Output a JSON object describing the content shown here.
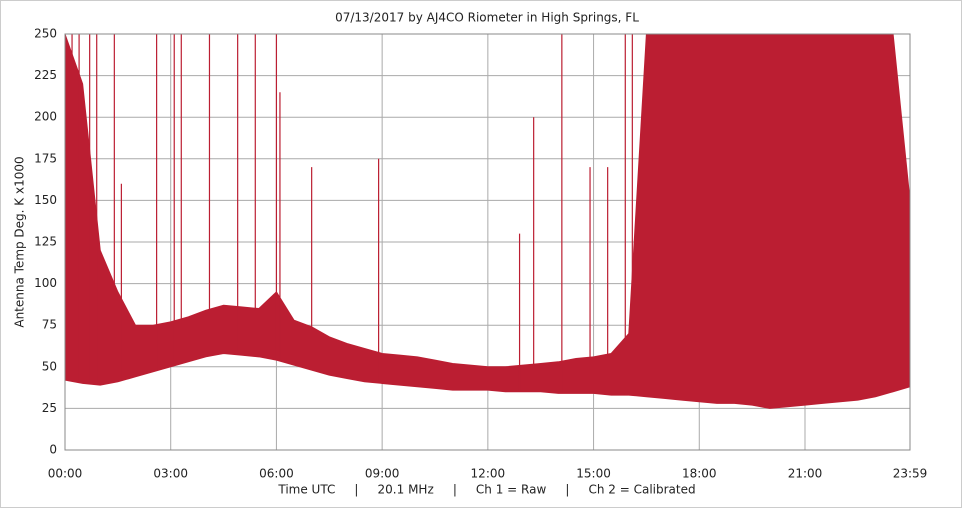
{
  "chart_data": {
    "type": "band",
    "title": "07/13/2017  by  AJ4CO Riometer  in  High Springs, FL",
    "y_label": "Antenna Temp Deg. K x1000",
    "x_label": "Time UTC     |     20.1 MHz     |     Ch 1 = Raw     |     Ch 2 = Calibrated",
    "color": "#bb1e32",
    "grid": true,
    "x": [
      0,
      0.5,
      1,
      1.5,
      2,
      2.5,
      3,
      3.5,
      4,
      4.5,
      5,
      5.5,
      6,
      6.5,
      7,
      7.5,
      8,
      8.5,
      9,
      9.5,
      10,
      10.5,
      11,
      11.5,
      12,
      12.5,
      13,
      13.5,
      14,
      14.5,
      15,
      15.5,
      16,
      16.5,
      17,
      17.5,
      18,
      18.5,
      19,
      19.5,
      20,
      20.5,
      21,
      21.5,
      22,
      22.5,
      23,
      23.5,
      23.98
    ],
    "series": [
      {
        "values": [
          42,
          40,
          39,
          41,
          44,
          47,
          50,
          53,
          56,
          58,
          57,
          56,
          54,
          51,
          48,
          45,
          43,
          41,
          40,
          39,
          38,
          37,
          36,
          36,
          36,
          35,
          35,
          35,
          34,
          34,
          34,
          33,
          33,
          32,
          31,
          30,
          29,
          28,
          28,
          27,
          25,
          26,
          27,
          28,
          29,
          30,
          32,
          35,
          38
        ]
      },
      {
        "values": [
          250,
          220,
          120,
          95,
          75,
          75,
          77,
          80,
          84,
          87,
          86,
          85,
          95,
          78,
          74,
          68,
          64,
          61,
          58,
          57,
          56,
          54,
          52,
          51,
          50,
          50,
          51,
          52,
          53,
          55,
          56,
          58,
          70,
          250,
          250,
          250,
          250,
          250,
          250,
          250,
          250,
          250,
          250,
          250,
          250,
          250,
          250,
          250,
          150
        ]
      }
    ],
    "spikes": {
      "x": [
        0.2,
        0.4,
        0.7,
        0.9,
        1.4,
        1.6,
        2.6,
        3.1,
        3.3,
        4.1,
        4.9,
        5.4,
        6.0,
        6.1,
        7.0,
        8.9,
        12.9,
        13.3,
        14.1,
        14.9,
        15.4,
        15.9,
        16.1
      ],
      "values": [
        250,
        250,
        250,
        250,
        250,
        160,
        250,
        250,
        250,
        250,
        250,
        250,
        250,
        215,
        170,
        175,
        130,
        200,
        250,
        170,
        170,
        250,
        250
      ]
    },
    "xlim": [
      0,
      23.98
    ],
    "xticks": [
      {
        "value": 0,
        "label": "00:00"
      },
      {
        "value": 3,
        "label": "03:00"
      },
      {
        "value": 6,
        "label": "06:00"
      },
      {
        "value": 9,
        "label": "09:00"
      },
      {
        "value": 12,
        "label": "12:00"
      },
      {
        "value": 15,
        "label": "15:00"
      },
      {
        "value": 18,
        "label": "18:00"
      },
      {
        "value": 21,
        "label": "21:00"
      },
      {
        "value": 23.98,
        "label": "23:59"
      }
    ],
    "ylim": [
      0,
      250
    ],
    "yticks": [
      0,
      25,
      50,
      75,
      100,
      125,
      150,
      175,
      200,
      225,
      250
    ]
  }
}
